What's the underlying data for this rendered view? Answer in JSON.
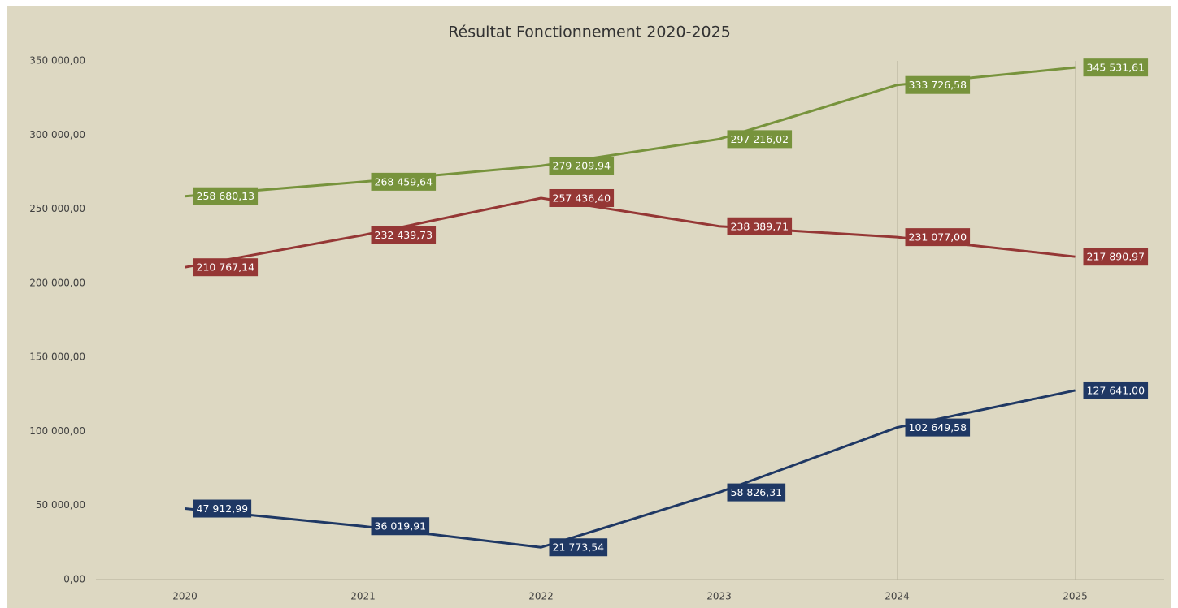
{
  "chart_data": {
    "type": "line",
    "title": "Résultat Fonctionnement 2020-2025",
    "categories": [
      "2020",
      "2021",
      "2022",
      "2023",
      "2024",
      "2025"
    ],
    "series": [
      {
        "color": "#77933c",
        "values": [
          258680.13,
          268459.64,
          279209.94,
          297216.02,
          333726.58,
          345531.61
        ],
        "value_labels": [
          "258 680,13",
          "268 459,64",
          "279 209,94",
          "297 216,02",
          "333 726,58",
          "345 531,61"
        ]
      },
      {
        "color": "#953735",
        "values": [
          210767.14,
          232439.73,
          257436.4,
          238389.71,
          231077.0,
          217890.97
        ],
        "value_labels": [
          "210 767,14",
          "232 439,73",
          "257 436,40",
          "238 389,71",
          "231 077,00",
          "217 890,97"
        ]
      },
      {
        "color": "#1f3864",
        "values": [
          47912.99,
          36019.91,
          21773.54,
          58826.31,
          102649.58,
          127641.0
        ],
        "value_labels": [
          "47 912,99",
          "36 019,91",
          "21 773,54",
          "58 826,31",
          "102 649,58",
          "127 641,00"
        ]
      }
    ],
    "ylim": [
      0,
      350000
    ],
    "yticks": [
      {
        "value": 0,
        "label": "0,00"
      },
      {
        "value": 50000,
        "label": "50 000,00"
      },
      {
        "value": 100000,
        "label": "100 000,00"
      },
      {
        "value": 150000,
        "label": "150 000,00"
      },
      {
        "value": 200000,
        "label": "200 000,00"
      },
      {
        "value": 250000,
        "label": "250 000,00"
      },
      {
        "value": 300000,
        "label": "300 000,00"
      },
      {
        "value": 350000,
        "label": "350 000,00"
      }
    ]
  }
}
